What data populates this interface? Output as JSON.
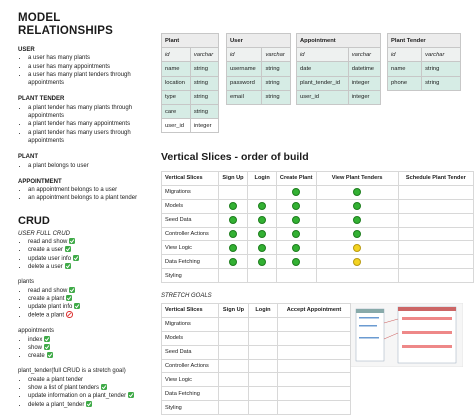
{
  "title": "MODEL RELATIONSHIPS",
  "relationships": [
    {
      "heading": "USER",
      "items": [
        "a user has many plants",
        "a user has many appointments",
        "a user has many plant tenders through appointments"
      ]
    },
    {
      "heading": "PLANT TENDER",
      "items": [
        "a plant tender has many plants through appointments",
        "a plant tender has many appointments",
        "a plant tender has many users through appointments"
      ]
    },
    {
      "heading": "PLANT",
      "items": [
        "a plant belongs to user"
      ]
    },
    {
      "heading": "APPOINTMENT",
      "items": [
        "an appointment belongs to a user",
        "an appointment belongs to a plant tender"
      ]
    }
  ],
  "crud": {
    "title": "CRUD",
    "groups": [
      {
        "heading": "USER FULL CRUD",
        "items": [
          {
            "text": "read and show",
            "status": "done"
          },
          {
            "text": "create a user",
            "status": "done"
          },
          {
            "text": "update user info",
            "status": "done"
          },
          {
            "text": "delete a user",
            "status": "done"
          }
        ]
      },
      {
        "heading": "plants",
        "items": [
          {
            "text": "read and show",
            "status": "done"
          },
          {
            "text": "create a plant",
            "status": "done"
          },
          {
            "text": "update plant info",
            "status": "done"
          },
          {
            "text": "delete a plant",
            "status": "blocked"
          }
        ]
      },
      {
        "heading": "appointments",
        "items": [
          {
            "text": "index",
            "status": "done"
          },
          {
            "text": "show",
            "status": "done"
          },
          {
            "text": "create",
            "status": "done"
          }
        ]
      },
      {
        "heading": "plant_tender(full CRUD is a stretch goal)",
        "items": [
          {
            "text": "create a plant tender",
            "status": null
          },
          {
            "text": "show a list of plant tenders",
            "status": "done"
          },
          {
            "text": "update information on a plant_tender",
            "status": "done"
          },
          {
            "text": "delete a plant_tender",
            "status": "done"
          }
        ]
      }
    ]
  },
  "models": [
    {
      "name": "Plant",
      "fields": [
        [
          "id",
          "varchar"
        ],
        [
          "name",
          "string"
        ],
        [
          "location",
          "string"
        ],
        [
          "type",
          "string"
        ],
        [
          "care",
          "string"
        ],
        [
          "user_id",
          "integer"
        ]
      ]
    },
    {
      "name": "User",
      "fields": [
        [
          "id",
          "varchar"
        ],
        [
          "username",
          "string"
        ],
        [
          "password",
          "string"
        ],
        [
          "email",
          "string"
        ]
      ]
    },
    {
      "name": "Appointment",
      "fields": [
        [
          "id",
          "varchar"
        ],
        [
          "date",
          "datetime"
        ],
        [
          "plant_tender_id",
          "integer"
        ],
        [
          "user_id",
          "integer"
        ]
      ]
    },
    {
      "name": "Plant Tender",
      "fields": [
        [
          "id",
          "varchar"
        ],
        [
          "name",
          "string"
        ],
        [
          "phone",
          "string"
        ]
      ]
    }
  ],
  "vertical_slices": {
    "title": "Vertical Slices - order of build",
    "columns": [
      "Vertical Slices",
      "Sign Up",
      "Login",
      "Create Plant",
      "View Plant Tenders",
      "Schedule Plant Tender"
    ],
    "rows": [
      {
        "name": "Migrations",
        "cells": [
          null,
          null,
          "green",
          "green",
          null
        ]
      },
      {
        "name": "Models",
        "cells": [
          "green",
          "green",
          "green",
          "green",
          null
        ]
      },
      {
        "name": "Seed Data",
        "cells": [
          "green",
          "green",
          "green",
          "green",
          null
        ]
      },
      {
        "name": "Controller Actions",
        "cells": [
          "green",
          "green",
          "green",
          "green",
          null
        ]
      },
      {
        "name": "View Logic",
        "cells": [
          "green",
          "green",
          "green",
          "yellow",
          null
        ]
      },
      {
        "name": "Data Fetching",
        "cells": [
          "green",
          "green",
          "green",
          "yellow",
          null
        ]
      },
      {
        "name": "Styling",
        "cells": [
          null,
          null,
          null,
          null,
          null
        ]
      }
    ]
  },
  "stretch_goals": {
    "title": "STRETCH GOALS",
    "columns": [
      "Vertical Slices",
      "Sign Up",
      "Login",
      "Accept Appointment"
    ],
    "rows": [
      "Migrations",
      "Models",
      "Seed Data",
      "Controller Actions",
      "View Logic",
      "Data Fetching",
      "Styling"
    ]
  }
}
